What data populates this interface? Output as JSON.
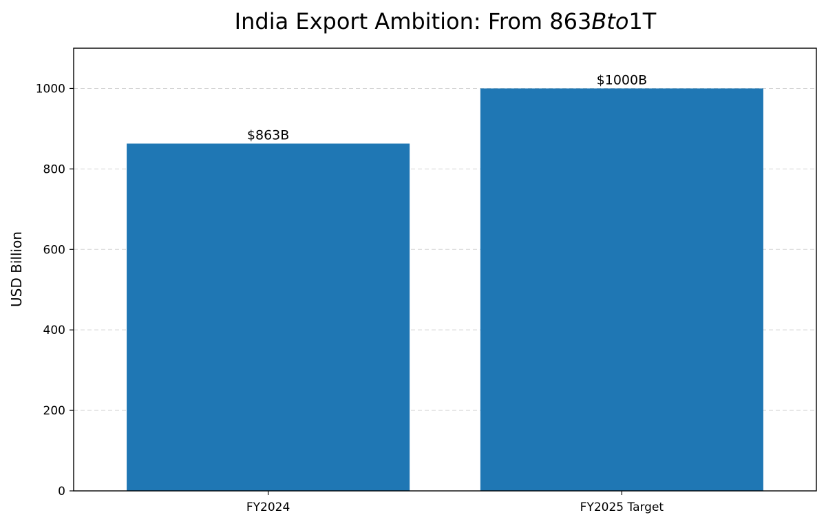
{
  "chart_data": {
    "type": "bar",
    "title": {
      "prefix": "India Export Ambition: From 863",
      "italic": "Bto",
      "suffix": "1T"
    },
    "xlabel": "",
    "ylabel": "USD Billion",
    "categories": [
      "FY2024",
      "FY2025 Target"
    ],
    "values": [
      863,
      1000
    ],
    "bar_labels": [
      "$863B",
      "$1000B"
    ],
    "ylim": [
      0,
      1100
    ],
    "yticks": [
      0,
      200,
      400,
      600,
      800,
      1000
    ],
    "grid": "y-dashed",
    "legend": "none",
    "colors": {
      "bar": "#1f77b4"
    }
  }
}
